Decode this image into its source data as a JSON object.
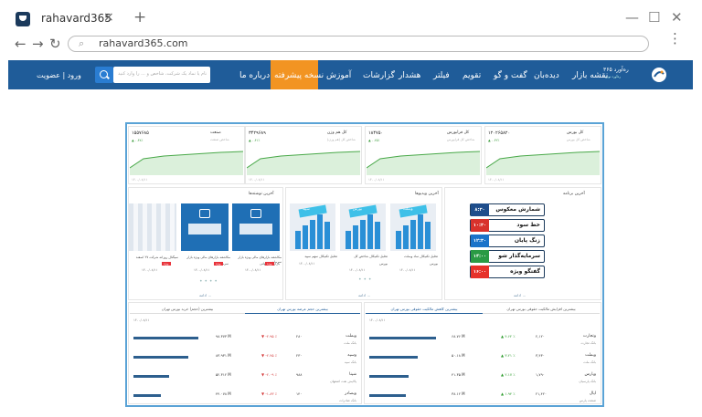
{
  "browser": {
    "tab_title": "rahavard365",
    "tab_close": "×",
    "new_tab": "+",
    "url": "rahavard365.com",
    "back": "←",
    "forward": "→",
    "reload": "↻",
    "minimize": "—",
    "maximize": "☐",
    "close": "✕",
    "menu": "⋮"
  },
  "header": {
    "nav": [
      "نقشه بازار",
      "دیده‌بان",
      "گفت و گو",
      "تقویم",
      "فیلتر",
      "هشدار",
      "گزارشات",
      "آموزش",
      "نسخه پیشرفته",
      "درباره ما"
    ],
    "search_placeholder": "نام یا نماد یک شرکت، شاخص و ... را وارد کنید",
    "login": "ورود | عضویت",
    "logo_text": "ره‌آورد ۳۶۵",
    "logo_sub": "ره‌آورد نوین"
  },
  "indices": [
    {
      "name": "کل بورس",
      "sub": "شاخص کل بورس",
      "value": "۱۲۰۲۶۵۸۲۰",
      "change": "▲ ۰.۳۲٪",
      "time": "۱۴۰۰/۰۸/۱۱"
    },
    {
      "name": "کل فرابورس",
      "sub": "شاخص کل فرابورس",
      "value": "۱۸۴۷۵۰",
      "change": "▲ ۰.۲۵٪",
      "time": "۱۴۰۰/۰۸/۱۱"
    },
    {
      "name": "کل هم وزن",
      "sub": "شاخص کل (هم وزن)",
      "value": "۳۴۲۹۶۸۹",
      "change": "▲ ۰.۴۱٪",
      "time": "۱۴۰۰/۰۸/۱۱"
    },
    {
      "name": "صنعت",
      "sub": "شاخص صنعت",
      "value": "۱۵۵۷۶۸۵",
      "change": "▲ ۰.۳۸٪",
      "time": "۱۴۰۰/۰۸/۱۱"
    }
  ],
  "programs": {
    "title": "آخرین برنامه",
    "items": [
      {
        "label": "شمارش معکوس",
        "time": "۸:۳۰",
        "color": "#1f4e8c"
      },
      {
        "label": "خط سود",
        "time": "۱۰:۳۰",
        "color": "#d8322c"
      },
      {
        "label": "زنگ پایان",
        "time": "۱۲:۳۰",
        "color": "#1b73c9"
      },
      {
        "label": "سرمایه‌گذار شو",
        "time": "۱۴:۰۰",
        "color": "#2a9a44"
      },
      {
        "label": "گفتگو ویژه",
        "time": "۱۶:۰۰",
        "color": "#e6312a"
      }
    ],
    "more": "ادامه ..."
  },
  "videos": {
    "title": "آخرین ویدیوها",
    "items": [
      {
        "caption": "تحلیل تکنیکال نماد وبملت",
        "sub": "بورس",
        "date": "۱۴۰۰/۰۸/۱۱",
        "thumb": "وبملت"
      },
      {
        "caption": "تحلیل تکنیکال شاخص کل",
        "sub": "بورس",
        "date": "۱۴۰۰/۰۸/۱۱",
        "thumb": "بورس"
      },
      {
        "caption": "تحلیل تکنیکال سهم سپید",
        "sub": "",
        "date": "۱۴۰۰/۰۸/۱۱",
        "thumb": "سپید"
      }
    ],
    "more": "ادامه ..."
  },
  "news": {
    "title": "آخرین نوشته‌ها",
    "items": [
      {
        "caption": "مکاشفه بازارهای مالی ویژه بازار سرمایه",
        "sub": "بازارهای جهانی",
        "tag": "ویژه",
        "date": "۱۴۰۰/۰۸/۱۱"
      },
      {
        "caption": "مکاشفه بازارهای مالی ویژه بازار",
        "sub": "سرمایه",
        "tag": "ویژه",
        "date": "۱۴۰۰/۰۸/۱۱"
      },
      {
        "caption": "سیگنال روزانه شرکت ۲۷ اسفند",
        "sub": "",
        "tag": "ویژه",
        "date": "۱۴۰۰/۰۸/۱۱"
      }
    ],
    "more": "ادامه ..."
  },
  "table_left": {
    "tabs": [
      "بیشترین حجم عرضه بورس تهران",
      "بیشترین (حجم) خرید بورس تهران"
    ],
    "date": "۱۴۰۰/۰۸/۱۱",
    "rows": [
      {
        "name": "وبملت",
        "sub": "بانک ملت",
        "price": "۲۸۰",
        "change": "▼ -۲.۹۵ ٪",
        "volume": "۹۸.۳۷۳ M",
        "bar": 0.82
      },
      {
        "name": "وسپه",
        "sub": "بانک سپه",
        "price": "۲۳۰",
        "change": "▼ -۲.۴۵ ٪",
        "volume": "۸۳.۹۳۱ M",
        "bar": 0.7
      },
      {
        "name": "شپنا",
        "sub": "پالایش نفت اصفهان",
        "price": "۹۸۸",
        "change": "▼ -۲.۰۹ ٪",
        "volume": "۵۲.۳۱۲ M",
        "bar": 0.45
      },
      {
        "name": "وبصادر",
        "sub": "بانک صادرات",
        "price": "۱۴۰",
        "change": "▼ -۱.۸۳ ٪",
        "volume": "۴۴.۰۷۸ M",
        "bar": 0.35
      }
    ]
  },
  "table_right": {
    "tabs": [
      "بیشترین افزایش مالکیت حقوقی بورس تهران",
      "بیشترین کاهش مالکیت حقوقی بورس تهران"
    ],
    "date": "۱۴۰۰/۰۸/۱۱",
    "rows": [
      {
        "name": "وتجارت",
        "sub": "بانک تجارت",
        "price": "۲,۱۲۰",
        "change": "▲ ۴.۶۲ ٪",
        "volume": "۶۸.۷۶ M",
        "bar": 0.85
      },
      {
        "name": "وبملت",
        "sub": "بانک ملت",
        "price": "۳,۴۳۰",
        "change": "▲ ۳.۲۱ ٪",
        "volume": "۵۰.۱۸ M",
        "bar": 0.62
      },
      {
        "name": "وپارس",
        "sub": "بانک پارسیان",
        "price": "۱,۷۹۰",
        "change": "▲ ۲.۱۷ ٪",
        "volume": "۴۱.۳۵ M",
        "bar": 0.5
      },
      {
        "name": "اپال",
        "sub": "صنعت پارس",
        "price": "۲۱,۴۲۰",
        "change": "▲ ۱.۹۴ ٪",
        "volume": "۳۸.۱۲ M",
        "bar": 0.46
      }
    ]
  },
  "colors": {
    "header": "#1f5c99",
    "accent": "#f29422",
    "frame": "#5aa3d6",
    "positive": "#2e9c2e",
    "negative": "#d43a3a"
  }
}
